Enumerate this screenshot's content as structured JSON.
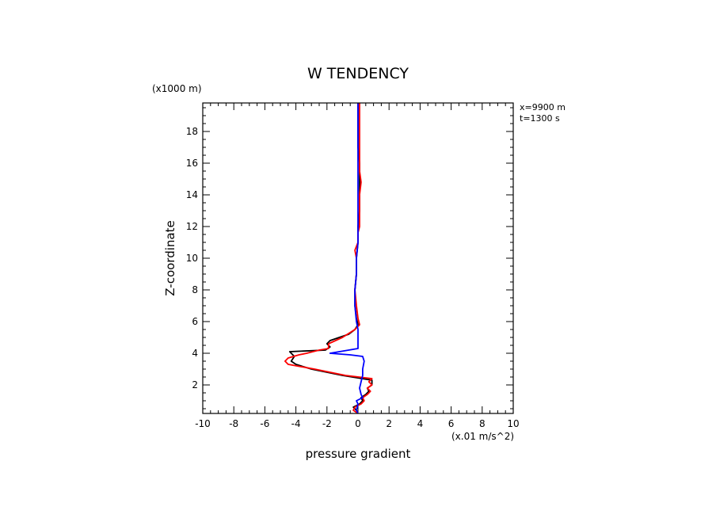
{
  "chart_data": {
    "type": "line",
    "title": "W TENDENCY",
    "xlabel": "pressure gradient",
    "ylabel": "Z-coordinate",
    "x_units": "(x.01 m/s^2)",
    "y_units": "(x1000 m)",
    "annotations": [
      "x=9900 m",
      "t=1300 s"
    ],
    "xlim": [
      -10,
      10
    ],
    "ylim": [
      0.2,
      19.8
    ],
    "x_ticks": [
      -10,
      -8,
      -6,
      -4,
      -2,
      0,
      2,
      4,
      6,
      8,
      10
    ],
    "x_tick_labels": [
      "-10",
      "-8",
      "-6",
      "-4",
      "-2",
      "0",
      "2",
      "4",
      "6",
      "8",
      "10"
    ],
    "y_ticks": [
      2,
      4,
      6,
      8,
      10,
      12,
      14,
      16,
      18
    ],
    "y_tick_labels": [
      "2",
      "4",
      "6",
      "8",
      "10",
      "12",
      "14",
      "16",
      "18"
    ],
    "grid": false,
    "series": [
      {
        "color": "#000000",
        "points": [
          [
            0.0,
            0.2
          ],
          [
            -0.1,
            0.4
          ],
          [
            -0.3,
            0.6
          ],
          [
            0.1,
            0.8
          ],
          [
            0.3,
            1.0
          ],
          [
            0.2,
            1.2
          ],
          [
            0.5,
            1.4
          ],
          [
            0.7,
            1.6
          ],
          [
            0.6,
            1.8
          ],
          [
            0.9,
            2.0
          ],
          [
            0.9,
            2.1
          ],
          [
            0.9,
            2.3
          ],
          [
            -1.0,
            2.6
          ],
          [
            -3.0,
            3.0
          ],
          [
            -4.0,
            3.3
          ],
          [
            -4.3,
            3.5
          ],
          [
            -4.1,
            3.8
          ],
          [
            -4.4,
            4.1
          ],
          [
            -2.1,
            4.2
          ],
          [
            -1.8,
            4.4
          ],
          [
            -2.0,
            4.6
          ],
          [
            -1.8,
            4.8
          ],
          [
            -0.6,
            5.2
          ],
          [
            -0.2,
            5.5
          ],
          [
            0.0,
            5.8
          ],
          [
            -0.1,
            6.2
          ],
          [
            -0.2,
            7.0
          ],
          [
            -0.2,
            8.0
          ],
          [
            -0.1,
            9.0
          ],
          [
            -0.1,
            10.0
          ],
          [
            0.0,
            11.0
          ],
          [
            0.0,
            12.0
          ],
          [
            0.1,
            13.0
          ],
          [
            0.1,
            14.0
          ],
          [
            0.1,
            15.0
          ],
          [
            0.1,
            16.0
          ],
          [
            0.0,
            17.0
          ],
          [
            0.0,
            18.0
          ],
          [
            0.0,
            19.0
          ],
          [
            0.0,
            19.8
          ]
        ]
      },
      {
        "color": "#ff0000",
        "points": [
          [
            0.0,
            0.2
          ],
          [
            -0.3,
            0.4
          ],
          [
            -0.2,
            0.6
          ],
          [
            0.2,
            0.8
          ],
          [
            0.4,
            1.0
          ],
          [
            0.3,
            1.2
          ],
          [
            0.6,
            1.4
          ],
          [
            0.8,
            1.6
          ],
          [
            0.6,
            1.8
          ],
          [
            0.9,
            2.0
          ],
          [
            0.7,
            2.2
          ],
          [
            0.9,
            2.4
          ],
          [
            -0.8,
            2.6
          ],
          [
            -2.8,
            3.0
          ],
          [
            -4.5,
            3.3
          ],
          [
            -4.7,
            3.5
          ],
          [
            -4.5,
            3.7
          ],
          [
            -3.8,
            3.9
          ],
          [
            -3.3,
            4.0
          ],
          [
            -2.5,
            4.2
          ],
          [
            -1.9,
            4.3
          ],
          [
            -1.9,
            4.6
          ],
          [
            -1.0,
            5.0
          ],
          [
            -0.2,
            5.5
          ],
          [
            0.1,
            5.8
          ],
          [
            0.0,
            6.2
          ],
          [
            -0.1,
            7.0
          ],
          [
            -0.2,
            8.0
          ],
          [
            -0.1,
            9.0
          ],
          [
            -0.1,
            10.0
          ],
          [
            -0.2,
            10.5
          ],
          [
            0.0,
            11.0
          ],
          [
            0.0,
            11.6
          ],
          [
            0.1,
            12.0
          ],
          [
            0.1,
            13.0
          ],
          [
            0.1,
            14.0
          ],
          [
            0.2,
            14.8
          ],
          [
            0.1,
            15.5
          ],
          [
            0.1,
            16.0
          ],
          [
            0.1,
            17.0
          ],
          [
            0.1,
            18.0
          ],
          [
            0.1,
            19.0
          ],
          [
            0.1,
            19.8
          ]
        ]
      },
      {
        "color": "#0000ff",
        "points": [
          [
            0.0,
            0.2
          ],
          [
            -0.1,
            0.4
          ],
          [
            0.0,
            0.8
          ],
          [
            -0.1,
            1.0
          ],
          [
            0.3,
            1.2
          ],
          [
            0.2,
            1.4
          ],
          [
            0.1,
            1.8
          ],
          [
            0.2,
            2.2
          ],
          [
            0.3,
            2.6
          ],
          [
            0.3,
            3.0
          ],
          [
            0.4,
            3.5
          ],
          [
            0.3,
            3.8
          ],
          [
            -0.5,
            3.9
          ],
          [
            -1.8,
            4.0
          ],
          [
            -1.2,
            4.1
          ],
          [
            0.0,
            4.3
          ],
          [
            0.0,
            4.8
          ],
          [
            0.0,
            5.2
          ],
          [
            0.0,
            5.5
          ],
          [
            -0.1,
            6.0
          ],
          [
            -0.2,
            7.0
          ],
          [
            -0.2,
            8.0
          ],
          [
            -0.1,
            9.0
          ],
          [
            -0.1,
            10.0
          ],
          [
            0.0,
            11.0
          ],
          [
            0.0,
            12.0
          ],
          [
            0.0,
            13.0
          ],
          [
            0.0,
            14.0
          ],
          [
            0.0,
            15.0
          ],
          [
            0.0,
            16.0
          ],
          [
            0.0,
            17.0
          ],
          [
            0.0,
            18.0
          ],
          [
            0.0,
            19.0
          ],
          [
            0.0,
            19.8
          ]
        ]
      }
    ]
  }
}
